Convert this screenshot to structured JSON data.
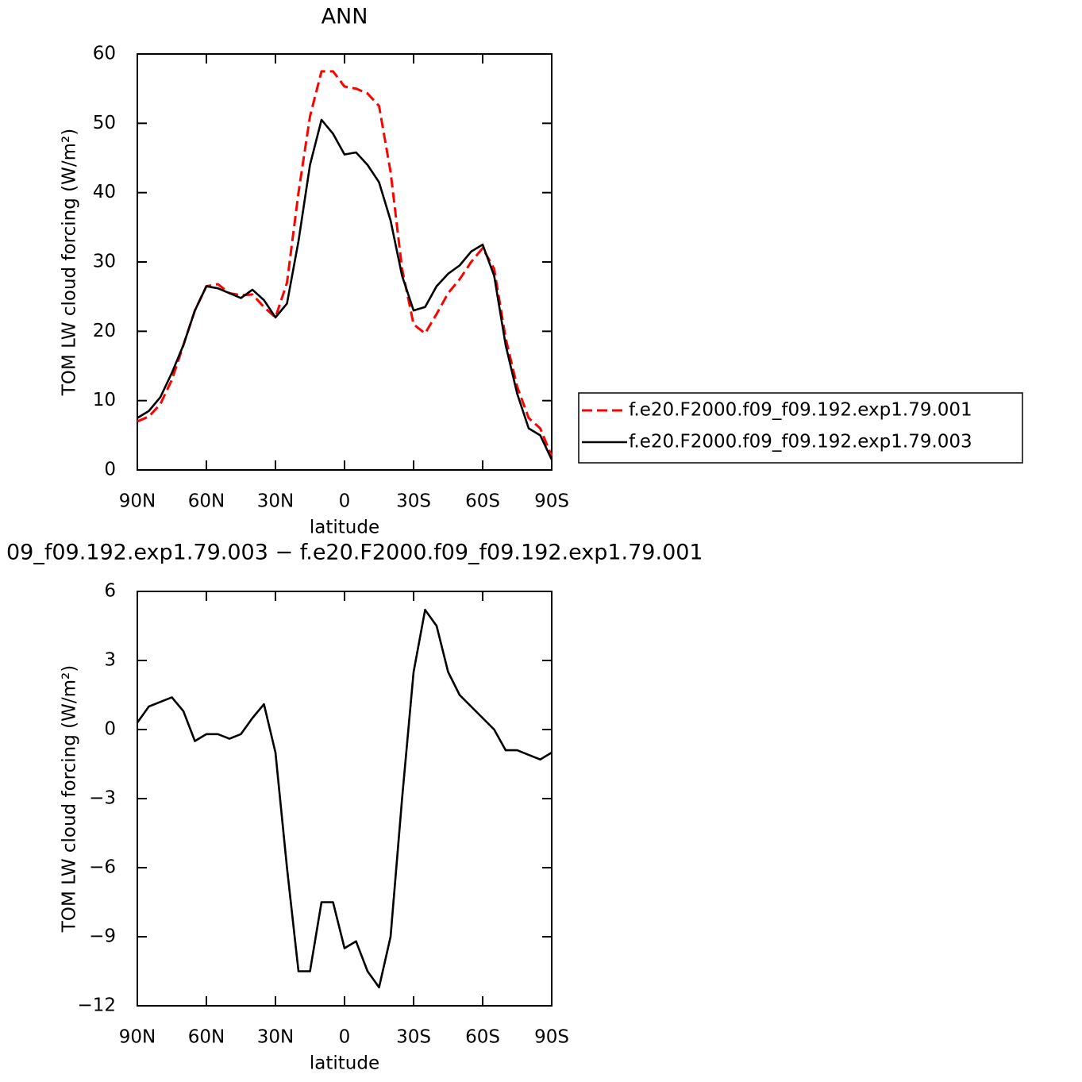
{
  "chart_data": [
    {
      "type": "line",
      "title": "ANN",
      "xlabel": "latitude",
      "ylabel": "TOM LW cloud forcing (W/m²)",
      "x": [
        90,
        85,
        80,
        75,
        70,
        65,
        60,
        55,
        50,
        45,
        40,
        35,
        30,
        25,
        20,
        15,
        10,
        5,
        0,
        -5,
        -10,
        -15,
        -20,
        -25,
        -30,
        -35,
        -40,
        -45,
        -50,
        -55,
        -60,
        -65,
        -70,
        -75,
        -80,
        -85,
        -90
      ],
      "series": [
        {
          "name": "f.e20.F2000.f09_f09.192.exp1.79.001",
          "color": "#ff0000",
          "dashed": true,
          "values": [
            7,
            7.7,
            9.5,
            13,
            18,
            23,
            26.5,
            26.8,
            25.5,
            25.2,
            25.3,
            23.5,
            22,
            27,
            40,
            51,
            57.5,
            57.5,
            55.3,
            55,
            54.3,
            52.5,
            43,
            29,
            21,
            19.7,
            22.5,
            25.5,
            27.5,
            30,
            32,
            29,
            19,
            12,
            7.5,
            6,
            2
          ]
        },
        {
          "name": "f.e20.F2000.f09_f09.192.exp1.79.003",
          "color": "#000000",
          "dashed": false,
          "values": [
            7.5,
            8.5,
            10.5,
            14,
            18,
            23,
            26.5,
            26.2,
            25.5,
            24.8,
            26,
            24.5,
            22,
            24,
            33,
            44,
            50.5,
            48.5,
            45.5,
            45.8,
            44,
            41.5,
            36,
            28,
            23,
            23.5,
            26.5,
            28.3,
            29.5,
            31.5,
            32.5,
            28,
            18,
            11,
            6,
            5,
            1.5
          ]
        }
      ],
      "xlim": [
        90,
        -90
      ],
      "xticks": [
        {
          "value": 90,
          "label": "90N"
        },
        {
          "value": 60,
          "label": "60N"
        },
        {
          "value": 30,
          "label": "30N"
        },
        0,
        {
          "value": -30,
          "label": "30S"
        },
        {
          "value": -60,
          "label": "60S"
        },
        {
          "value": -90,
          "label": "90S"
        }
      ],
      "ylim": [
        0,
        60
      ],
      "yticks": [
        0,
        10,
        20,
        30,
        40,
        50,
        60
      ],
      "legend": "right"
    },
    {
      "type": "line",
      "title": "09_f09.192.exp1.79.003 − f.e20.F2000.f09_f09.192.exp1.79.001",
      "xlabel": "latitude",
      "ylabel": "TOM LW cloud forcing (W/m²)",
      "x": [
        90,
        85,
        80,
        75,
        70,
        65,
        60,
        55,
        50,
        45,
        40,
        35,
        30,
        25,
        20,
        15,
        10,
        5,
        0,
        -5,
        -10,
        -15,
        -20,
        -25,
        -30,
        -35,
        -40,
        -45,
        -50,
        -55,
        -60,
        -65,
        -70,
        -75,
        -80,
        -85,
        -90
      ],
      "series": [
        {
          "color": "#000000",
          "dashed": false,
          "values": [
            0.3,
            1.0,
            1.2,
            1.4,
            0.8,
            -0.5,
            -0.2,
            -0.2,
            -0.4,
            -0.2,
            0.5,
            1.1,
            -1,
            -6,
            -10.5,
            -10.5,
            -7.5,
            -7.5,
            -9.5,
            -9.2,
            -10.5,
            -11.2,
            -9,
            -3,
            2.5,
            5.2,
            4.5,
            2.5,
            1.5,
            1.0,
            0.5,
            0,
            -0.9,
            -0.9,
            -1.1,
            -1.3,
            -1.0
          ]
        }
      ],
      "xlim": [
        90,
        -90
      ],
      "xticks": [
        {
          "value": 90,
          "label": "90N"
        },
        {
          "value": 60,
          "label": "60N"
        },
        {
          "value": 30,
          "label": "30N"
        },
        0,
        {
          "value": -30,
          "label": "30S"
        },
        {
          "value": -60,
          "label": "60S"
        },
        {
          "value": -90,
          "label": "90S"
        }
      ],
      "ylim": [
        -12,
        6
      ],
      "yticks": [
        {
          "value": -12,
          "label": "−12"
        },
        {
          "value": -9,
          "label": "−9"
        },
        {
          "value": -6,
          "label": "−6"
        },
        {
          "value": -3,
          "label": "−3"
        },
        0,
        3,
        6
      ]
    }
  ]
}
